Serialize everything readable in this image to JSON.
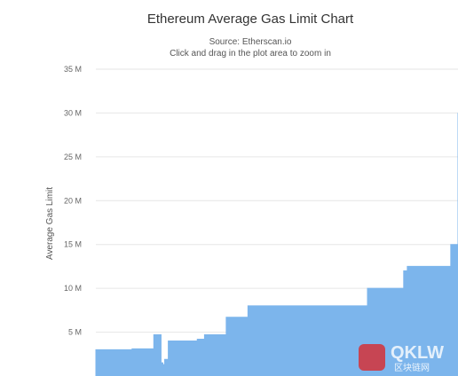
{
  "chart_data": {
    "type": "area",
    "title": "Ethereum Average Gas Limit Chart",
    "subtitle_lines": [
      "Source: Etherscan.io",
      "Click and drag in the plot area to zoom in"
    ],
    "ylabel": "Average Gas Limit",
    "xlabel": "",
    "ylim": [
      0,
      35000000
    ],
    "y_ticks": [
      {
        "value": 5000000,
        "label": "5 M"
      },
      {
        "value": 10000000,
        "label": "10 M"
      },
      {
        "value": 15000000,
        "label": "15 M"
      },
      {
        "value": 20000000,
        "label": "20 M"
      },
      {
        "value": 25000000,
        "label": "25 M"
      },
      {
        "value": 30000000,
        "label": "30 M"
      },
      {
        "value": 35000000,
        "label": "35 M"
      }
    ],
    "grid": true,
    "legend": false,
    "color": "#7cb5ec",
    "series": [
      {
        "x": [
          0.0,
          0.08,
          0.09,
          0.1,
          0.16,
          0.17,
          0.18,
          0.185,
          0.19,
          0.2,
          0.26,
          0.28,
          0.3,
          0.36,
          0.4,
          0.42,
          0.6,
          0.7,
          0.75,
          0.8,
          0.85,
          0.86,
          0.9,
          0.98,
          1.0
        ],
        "values": [
          3000000,
          3000000,
          3000000,
          3100000,
          4700000,
          4700000,
          1500000,
          1300000,
          1900000,
          4000000,
          4000000,
          4200000,
          4700000,
          6700000,
          6700000,
          8000000,
          8000000,
          8000000,
          10000000,
          10000000,
          12000000,
          12500000,
          12500000,
          15000000,
          30000000
        ]
      }
    ]
  },
  "watermark": {
    "text": "QKLW",
    "sub": "区块链网"
  }
}
